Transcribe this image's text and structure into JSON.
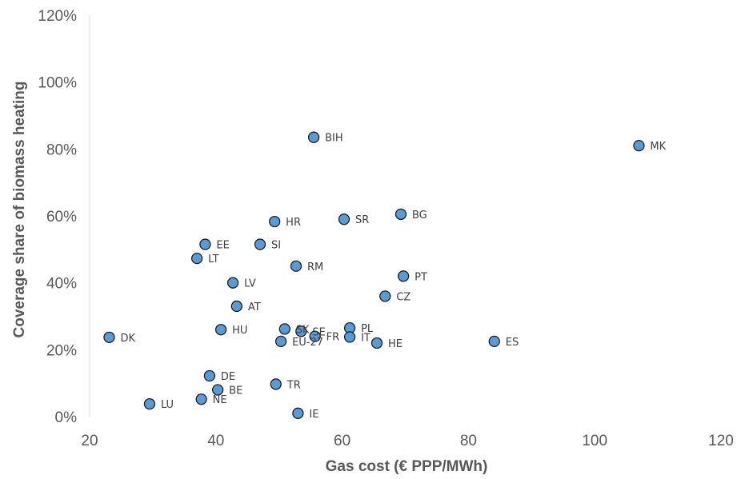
{
  "chart_data": {
    "type": "scatter",
    "title": "",
    "xlabel": "Gas cost (€ PPP/MWh)",
    "ylabel": "Coverage share of biomass heating",
    "xlim": [
      20,
      120
    ],
    "ylim": [
      0,
      1.2
    ],
    "x_ticks": [
      "20",
      "40",
      "60",
      "80",
      "100",
      "120"
    ],
    "y_ticks": [
      "0%",
      "20%",
      "40%",
      "60%",
      "80%",
      "100%",
      "120%"
    ],
    "grid": false,
    "legend": "none",
    "marker_color": "#5b9bd5",
    "points": [
      {
        "label": "MK",
        "x": 107,
        "y": 0.81
      },
      {
        "label": "BIH",
        "x": 55.5,
        "y": 0.835
      },
      {
        "label": "BG",
        "x": 69.3,
        "y": 0.605
      },
      {
        "label": "SR",
        "x": 60.3,
        "y": 0.59
      },
      {
        "label": "HR",
        "x": 49.3,
        "y": 0.583
      },
      {
        "label": "EE",
        "x": 38.3,
        "y": 0.515
      },
      {
        "label": "SI",
        "x": 47,
        "y": 0.515
      },
      {
        "label": "LT",
        "x": 37,
        "y": 0.473
      },
      {
        "label": "RM",
        "x": 52.7,
        "y": 0.45
      },
      {
        "label": "PT",
        "x": 69.7,
        "y": 0.42
      },
      {
        "label": "LV",
        "x": 42.7,
        "y": 0.4
      },
      {
        "label": "CZ",
        "x": 66.8,
        "y": 0.36
      },
      {
        "label": "AT",
        "x": 43.3,
        "y": 0.33
      },
      {
        "label": "HU",
        "x": 40.8,
        "y": 0.26
      },
      {
        "label": "SK",
        "x": 50.9,
        "y": 0.262
      },
      {
        "label": "SE",
        "x": 53.5,
        "y": 0.255
      },
      {
        "label": "PL",
        "x": 61.2,
        "y": 0.265
      },
      {
        "label": "DK",
        "x": 23.1,
        "y": 0.237
      },
      {
        "label": "FR",
        "x": 55.7,
        "y": 0.24
      },
      {
        "label": "IT",
        "x": 61.2,
        "y": 0.238
      },
      {
        "label": "EU-27",
        "x": 50.3,
        "y": 0.225
      },
      {
        "label": "HE",
        "x": 65.5,
        "y": 0.22
      },
      {
        "label": "ES",
        "x": 84.1,
        "y": 0.225
      },
      {
        "label": "DE",
        "x": 39,
        "y": 0.122
      },
      {
        "label": "TR",
        "x": 49.5,
        "y": 0.097
      },
      {
        "label": "BE",
        "x": 40.3,
        "y": 0.08
      },
      {
        "label": "NE",
        "x": 37.7,
        "y": 0.052
      },
      {
        "label": "LU",
        "x": 29.5,
        "y": 0.038
      },
      {
        "label": "IE",
        "x": 53,
        "y": 0.01
      }
    ]
  }
}
